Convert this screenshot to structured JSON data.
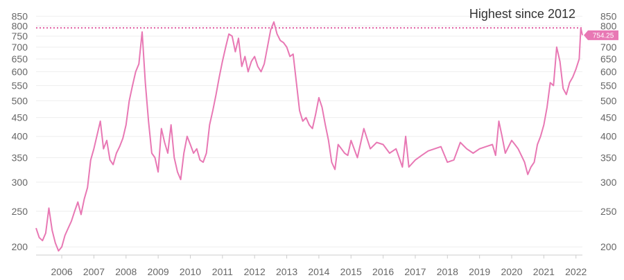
{
  "chart_data": {
    "type": "line",
    "title": "",
    "xlabel": "",
    "ylabel": "",
    "y_scale": "log",
    "ylim": [
      190,
      870
    ],
    "xlim": [
      2005.2,
      2022.2
    ],
    "grid": "horizontal",
    "legend": "none",
    "y_ticks": [
      200,
      250,
      300,
      350,
      400,
      450,
      500,
      550,
      600,
      650,
      700,
      750,
      800,
      850
    ],
    "x_ticks": [
      2006,
      2007,
      2008,
      2009,
      2010,
      2011,
      2012,
      2013,
      2014,
      2015,
      2016,
      2017,
      2018,
      2019,
      2020,
      2021,
      2022
    ],
    "annotation": "Highest since 2012",
    "reference_line": 790,
    "last_value_label": "754.25",
    "colors": {
      "series": "#e878b4",
      "reference": "#e05aa0",
      "badge": "#e878b4",
      "grid": "#eeeeee",
      "axis": "#cccccc"
    },
    "series": [
      {
        "x": [
          2005.2,
          2005.3,
          2005.4,
          2005.5,
          2005.6,
          2005.7,
          2005.8,
          2005.9,
          2006.0,
          2006.1,
          2006.2,
          2006.3,
          2006.4,
          2006.5,
          2006.6,
          2006.7,
          2006.8,
          2006.9,
          2007.0,
          2007.2,
          2007.3,
          2007.4,
          2007.5,
          2007.6,
          2007.7,
          2007.8,
          2007.9,
          2008.0,
          2008.1,
          2008.2,
          2008.3,
          2008.4,
          2008.5,
          2008.6,
          2008.7,
          2008.8,
          2008.9,
          2009.0,
          2009.1,
          2009.2,
          2009.3,
          2009.4,
          2009.5,
          2009.6,
          2009.7,
          2009.8,
          2009.9,
          2010.0,
          2010.1,
          2010.2,
          2010.3,
          2010.4,
          2010.5,
          2010.6,
          2010.7,
          2010.8,
          2010.9,
          2011.0,
          2011.1,
          2011.2,
          2011.3,
          2011.4,
          2011.5,
          2011.6,
          2011.7,
          2011.8,
          2011.9,
          2012.0,
          2012.1,
          2012.2,
          2012.3,
          2012.4,
          2012.5,
          2012.6,
          2012.7,
          2012.8,
          2012.9,
          2013.0,
          2013.1,
          2013.2,
          2013.3,
          2013.4,
          2013.5,
          2013.6,
          2013.7,
          2013.8,
          2013.9,
          2014.0,
          2014.1,
          2014.2,
          2014.3,
          2014.4,
          2014.5,
          2014.6,
          2014.7,
          2014.8,
          2014.9,
          2015.0,
          2015.2,
          2015.4,
          2015.6,
          2015.8,
          2016.0,
          2016.2,
          2016.4,
          2016.6,
          2016.7,
          2016.8,
          2017.0,
          2017.2,
          2017.4,
          2017.6,
          2017.8,
          2018.0,
          2018.2,
          2018.4,
          2018.6,
          2018.8,
          2019.0,
          2019.2,
          2019.4,
          2019.5,
          2019.6,
          2019.7,
          2019.8,
          2020.0,
          2020.1,
          2020.2,
          2020.3,
          2020.4,
          2020.5,
          2020.6,
          2020.7,
          2020.8,
          2020.9,
          2021.0,
          2021.1,
          2021.2,
          2021.3,
          2021.4,
          2021.5,
          2021.6,
          2021.7,
          2021.8,
          2021.9,
          2022.0,
          2022.1,
          2022.15,
          2022.2
        ],
        "y": [
          225,
          212,
          208,
          218,
          255,
          222,
          205,
          195,
          200,
          215,
          225,
          235,
          250,
          265,
          245,
          270,
          290,
          345,
          370,
          440,
          370,
          390,
          345,
          335,
          360,
          375,
          395,
          430,
          500,
          550,
          600,
          630,
          770,
          560,
          440,
          360,
          350,
          320,
          420,
          385,
          360,
          430,
          350,
          320,
          305,
          360,
          400,
          380,
          360,
          370,
          345,
          340,
          360,
          430,
          470,
          520,
          580,
          640,
          700,
          760,
          750,
          680,
          740,
          620,
          660,
          600,
          640,
          660,
          620,
          600,
          630,
          700,
          780,
          820,
          760,
          730,
          720,
          700,
          660,
          670,
          560,
          470,
          440,
          450,
          430,
          420,
          460,
          510,
          480,
          430,
          390,
          340,
          325,
          380,
          370,
          360,
          355,
          390,
          350,
          420,
          370,
          385,
          380,
          360,
          370,
          330,
          400,
          330,
          345,
          355,
          365,
          370,
          375,
          340,
          345,
          385,
          370,
          360,
          370,
          375,
          380,
          355,
          440,
          400,
          360,
          390,
          380,
          370,
          355,
          340,
          315,
          330,
          340,
          380,
          400,
          430,
          480,
          560,
          550,
          700,
          640,
          540,
          520,
          560,
          580,
          610,
          650,
          790,
          754.25
        ]
      }
    ]
  }
}
